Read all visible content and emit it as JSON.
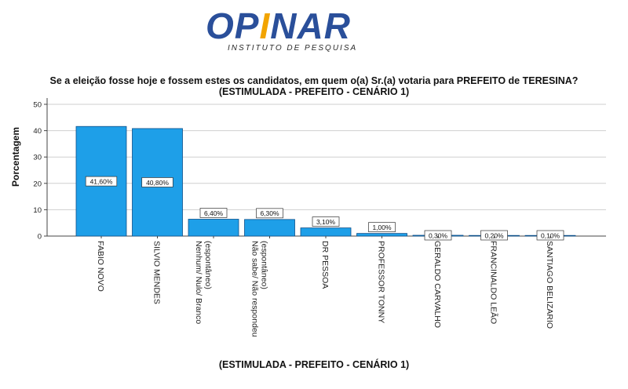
{
  "logo": {
    "text_main": "OP",
    "text_accent": "I",
    "text_rest": "NAR",
    "subtitle": "INSTITUTO DE PESQUISA",
    "color_main": "#2a4f9a",
    "color_accent": "#f2a400"
  },
  "chart_data": {
    "type": "bar",
    "title": "Se a eleição fosse hoje e fossem estes os candidatos, em quem o(a) Sr.(a) votaria para PREFEITO de TERESINA? (ESTIMULADA - PREFEITO - CENÁRIO 1)",
    "xlabel": "(ESTIMULADA - PREFEITO - CENÁRIO 1)",
    "ylabel": "Porcentagem",
    "ylim": [
      0,
      50
    ],
    "yticks": [
      0,
      10,
      20,
      30,
      40,
      50
    ],
    "grid": true,
    "bar_color": "#1e9fe8",
    "categories": [
      "FABIO NOVO",
      "SILVIO MENDES",
      "Nenhum/ Nulo/ Branco (espontâneo)",
      "Não sabe/ Não respondeu (espontâneo)",
      "DR PESSOA",
      "PROFESSOR TONNY",
      "GERALDO CARVALHO",
      "FRANCINALDO LEÃO",
      "SANTIAGO BELIZARIO"
    ],
    "category_lines": [
      [
        "FABIO NOVO"
      ],
      [
        "SILVIO MENDES"
      ],
      [
        "Nenhum/ Nulo/ Branco",
        "(espontâneo)"
      ],
      [
        "Não sabe/ Não respondeu",
        "(espontâneo)"
      ],
      [
        "DR PESSOA"
      ],
      [
        "PROFESSOR TONNY"
      ],
      [
        "GERALDO CARVALHO"
      ],
      [
        "FRANCINALDO LEÃO"
      ],
      [
        "SANTIAGO BELIZARIO"
      ]
    ],
    "values": [
      41.6,
      40.8,
      6.4,
      6.3,
      3.1,
      1.0,
      0.3,
      0.2,
      0.1
    ],
    "data_labels": [
      "41,60%",
      "40,80%",
      "6,40%",
      "6,30%",
      "3,10%",
      "1,00%",
      "0,30%",
      "0,20%",
      "0,10%"
    ]
  }
}
